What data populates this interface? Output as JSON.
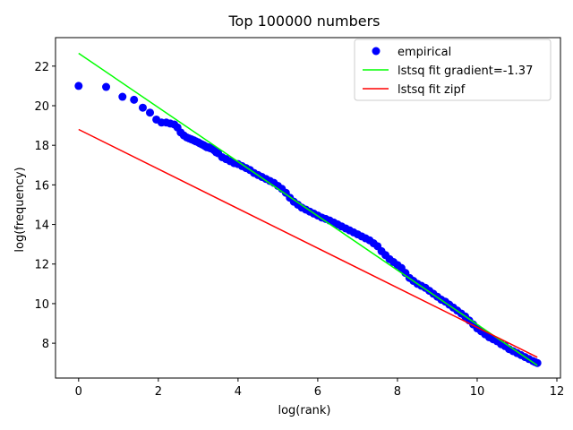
{
  "chart_data": {
    "type": "scatter",
    "title": "Top 100000 numbers",
    "xlabel": "log(rank)",
    "ylabel": "log(frequency)",
    "xlim": [
      -0.58,
      12.09
    ],
    "ylim": [
      6.24,
      23.44
    ],
    "xticks": [
      0,
      2,
      4,
      6,
      8,
      10,
      12
    ],
    "yticks": [
      8,
      10,
      12,
      14,
      16,
      18,
      20,
      22
    ],
    "grid": false,
    "legend_position": "top-right",
    "series": [
      {
        "name": "empirical",
        "kind": "scatter",
        "color": "#0000ff",
        "points": [
          [
            0.0,
            21.0
          ],
          [
            0.69,
            20.95
          ],
          [
            1.1,
            20.45
          ],
          [
            1.39,
            20.3
          ],
          [
            1.61,
            19.9
          ],
          [
            1.79,
            19.65
          ],
          [
            1.95,
            19.3
          ],
          [
            2.08,
            19.15
          ],
          [
            2.2,
            19.15
          ],
          [
            2.3,
            19.1
          ],
          [
            2.4,
            19.05
          ],
          [
            2.48,
            18.9
          ],
          [
            2.56,
            18.65
          ],
          [
            2.64,
            18.5
          ],
          [
            2.71,
            18.4
          ],
          [
            2.77,
            18.35
          ],
          [
            2.83,
            18.3
          ],
          [
            2.89,
            18.25
          ],
          [
            2.94,
            18.2
          ],
          [
            3.0,
            18.15
          ],
          [
            3.04,
            18.1
          ],
          [
            3.09,
            18.05
          ],
          [
            3.14,
            18.0
          ],
          [
            3.18,
            17.95
          ],
          [
            3.22,
            17.9
          ],
          [
            3.26,
            17.9
          ],
          [
            3.3,
            17.85
          ],
          [
            3.33,
            17.85
          ],
          [
            3.37,
            17.8
          ],
          [
            3.4,
            17.75
          ],
          [
            3.45,
            17.65
          ],
          [
            3.5,
            17.6
          ],
          [
            3.6,
            17.4
          ],
          [
            3.7,
            17.3
          ],
          [
            3.8,
            17.2
          ],
          [
            3.9,
            17.1
          ],
          [
            4.0,
            17.05
          ],
          [
            4.1,
            16.95
          ],
          [
            4.2,
            16.85
          ],
          [
            4.3,
            16.75
          ],
          [
            4.4,
            16.6
          ],
          [
            4.5,
            16.5
          ],
          [
            4.6,
            16.4
          ],
          [
            4.7,
            16.3
          ],
          [
            4.8,
            16.2
          ],
          [
            4.9,
            16.1
          ],
          [
            5.0,
            15.95
          ],
          [
            5.1,
            15.8
          ],
          [
            5.2,
            15.6
          ],
          [
            5.3,
            15.35
          ],
          [
            5.4,
            15.15
          ],
          [
            5.5,
            15.0
          ],
          [
            5.6,
            14.85
          ],
          [
            5.7,
            14.75
          ],
          [
            5.8,
            14.65
          ],
          [
            5.9,
            14.55
          ],
          [
            6.0,
            14.45
          ],
          [
            6.1,
            14.35
          ],
          [
            6.2,
            14.28
          ],
          [
            6.3,
            14.2
          ],
          [
            6.4,
            14.1
          ],
          [
            6.5,
            14.0
          ],
          [
            6.6,
            13.9
          ],
          [
            6.7,
            13.8
          ],
          [
            6.8,
            13.7
          ],
          [
            6.9,
            13.6
          ],
          [
            7.0,
            13.5
          ],
          [
            7.1,
            13.4
          ],
          [
            7.2,
            13.3
          ],
          [
            7.3,
            13.2
          ],
          [
            7.4,
            13.05
          ],
          [
            7.5,
            12.9
          ],
          [
            7.6,
            12.65
          ],
          [
            7.7,
            12.45
          ],
          [
            7.8,
            12.25
          ],
          [
            7.9,
            12.1
          ],
          [
            8.0,
            11.95
          ],
          [
            8.1,
            11.8
          ],
          [
            8.2,
            11.55
          ],
          [
            8.3,
            11.3
          ],
          [
            8.4,
            11.15
          ],
          [
            8.5,
            11.0
          ],
          [
            8.6,
            10.9
          ],
          [
            8.7,
            10.8
          ],
          [
            8.8,
            10.65
          ],
          [
            8.9,
            10.5
          ],
          [
            9.0,
            10.35
          ],
          [
            9.1,
            10.2
          ],
          [
            9.2,
            10.1
          ],
          [
            9.3,
            9.95
          ],
          [
            9.4,
            9.8
          ],
          [
            9.5,
            9.65
          ],
          [
            9.6,
            9.5
          ],
          [
            9.7,
            9.35
          ],
          [
            9.8,
            9.15
          ],
          [
            9.9,
            8.95
          ],
          [
            10.0,
            8.75
          ],
          [
            10.1,
            8.6
          ],
          [
            10.2,
            8.45
          ],
          [
            10.3,
            8.3
          ],
          [
            10.4,
            8.2
          ],
          [
            10.5,
            8.1
          ],
          [
            10.6,
            7.95
          ],
          [
            10.7,
            7.85
          ],
          [
            10.8,
            7.7
          ],
          [
            10.9,
            7.6
          ],
          [
            11.0,
            7.5
          ],
          [
            11.1,
            7.4
          ],
          [
            11.2,
            7.3
          ],
          [
            11.3,
            7.2
          ],
          [
            11.4,
            7.1
          ],
          [
            11.45,
            7.05
          ],
          [
            11.51,
            7.0
          ]
        ]
      },
      {
        "name": "lstsq fit gradient=-1.37",
        "kind": "line",
        "color": "#00ff00",
        "points": [
          [
            0.0,
            22.65
          ],
          [
            11.51,
            6.88
          ]
        ]
      },
      {
        "name": "lstsq fit zipf",
        "kind": "line",
        "color": "#ff0000",
        "points": [
          [
            0.0,
            18.8
          ],
          [
            11.51,
            7.29
          ]
        ]
      }
    ]
  }
}
